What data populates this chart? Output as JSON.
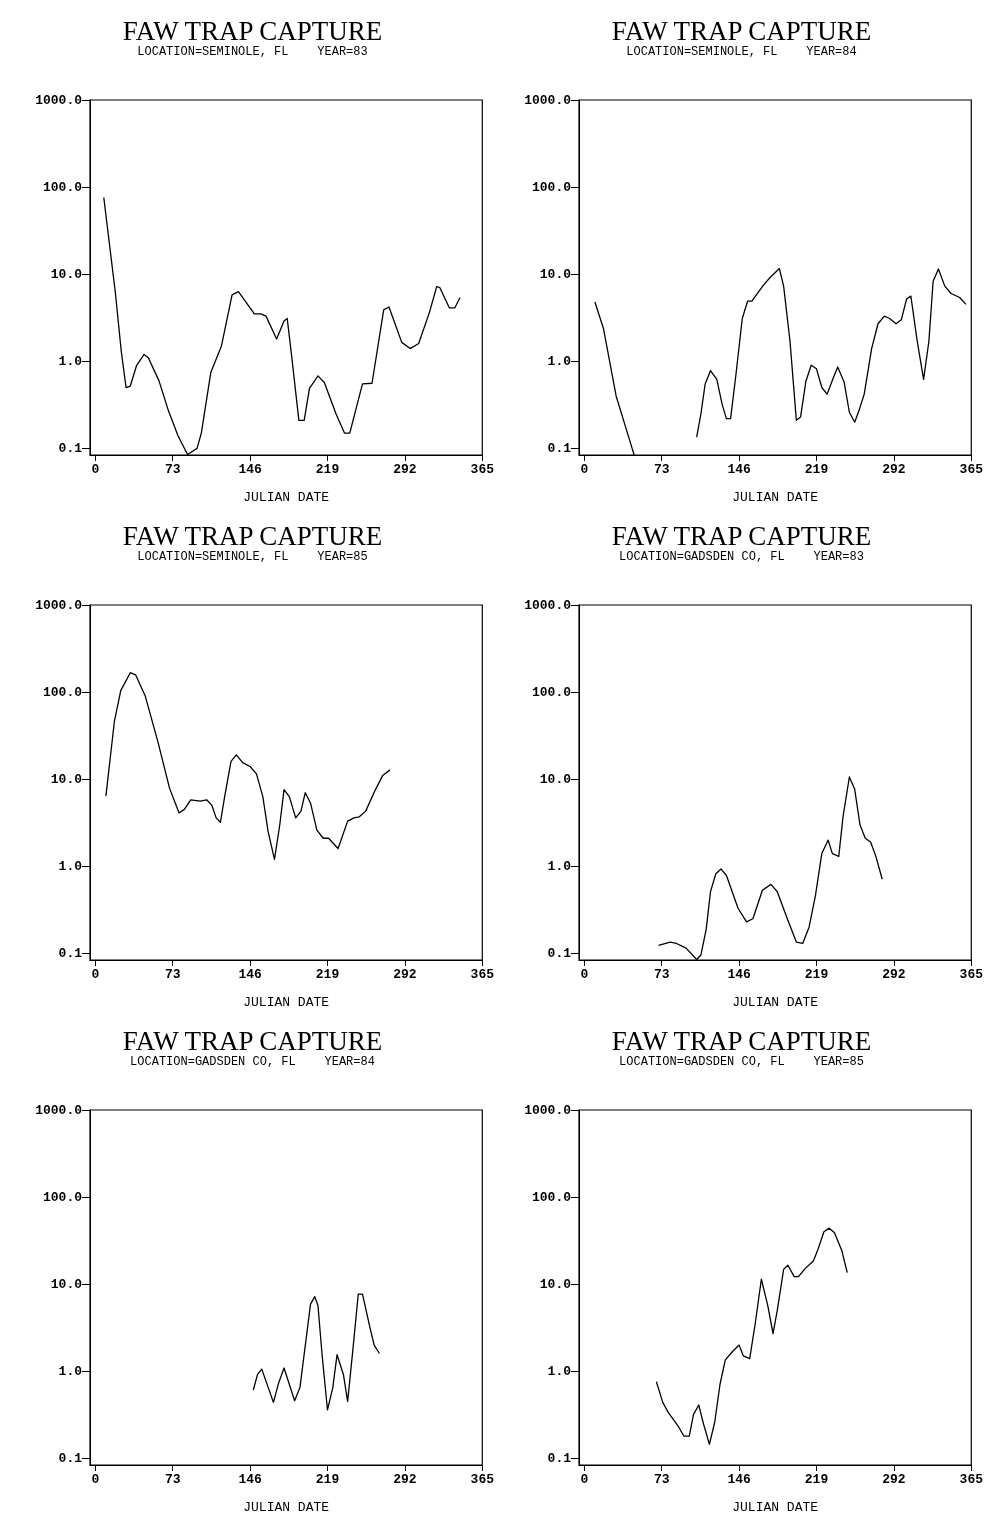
{
  "chart_data": [
    {
      "type": "line",
      "title": "FAW TRAP CAPTURE",
      "subtitle": "LOCATION=SEMINOLE, FL    YEAR=83",
      "xlabel": "JULIAN DATE",
      "log": "y",
      "marker": "none",
      "xlim": [
        -5,
        365
      ],
      "xticks": [
        0,
        73,
        146,
        219,
        292,
        365
      ],
      "ylim": [
        0.084,
        1000
      ],
      "yticks": [
        {
          "value": 0.1,
          "label": "0.1"
        },
        {
          "value": 1,
          "label": "1.0"
        },
        {
          "value": 10,
          "label": "10.0"
        },
        {
          "value": 100,
          "label": "100.0"
        },
        {
          "value": 1000,
          "label": "1000.0"
        }
      ],
      "x": [
        8,
        19,
        24.5,
        29,
        33,
        39,
        46,
        50,
        60,
        69,
        78,
        87,
        96,
        100,
        109,
        119,
        129,
        135,
        150,
        156,
        161,
        171,
        178,
        181,
        185,
        192,
        197,
        202,
        210,
        216,
        227,
        235,
        240,
        252,
        261,
        272,
        277,
        289,
        297,
        305,
        315,
        322,
        325,
        334,
        339,
        344
      ],
      "series": [
        {
          "color": "#000000",
          "values": [
            76,
            6,
            1.3,
            0.5,
            0.52,
            0.9,
            1.2,
            1.1,
            0.6,
            0.27,
            0.14,
            0.085,
            0.1,
            0.15,
            0.75,
            1.5,
            5.8,
            6.3,
            3.5,
            3.5,
            3.3,
            1.8,
            2.9,
            3.1,
            1.2,
            0.21,
            0.21,
            0.49,
            0.68,
            0.57,
            0.25,
            0.15,
            0.15,
            0.55,
            0.56,
            3.9,
            4.2,
            1.65,
            1.4,
            1.6,
            3.6,
            7.2,
            7,
            4.1,
            4.1,
            5.4
          ]
        }
      ]
    },
    {
      "type": "line",
      "title": "FAW TRAP CAPTURE",
      "subtitle": "LOCATION=SEMINOLE, FL    YEAR=84",
      "xlabel": "JULIAN DATE",
      "log": "y",
      "marker": "none",
      "xlim": [
        -5,
        365
      ],
      "xticks": [
        0,
        73,
        146,
        219,
        292,
        365
      ],
      "ylim": [
        0.084,
        1000
      ],
      "yticks": [
        {
          "value": 0.1,
          "label": "0.1"
        },
        {
          "value": 1,
          "label": "1.0"
        },
        {
          "value": 10,
          "label": "10.0"
        },
        {
          "value": 100,
          "label": "100.0"
        },
        {
          "value": 1000,
          "label": "1000.0"
        }
      ],
      "x": [
        10,
        18,
        30,
        40,
        47,
        80,
        106,
        110,
        114,
        119,
        125,
        130,
        134,
        138,
        143,
        149,
        154,
        158,
        169,
        175,
        184,
        188,
        194,
        200,
        204,
        209,
        214,
        219,
        224,
        229,
        235,
        239,
        245,
        250,
        255,
        259,
        264,
        271,
        277,
        283,
        288,
        294,
        299,
        304,
        308,
        314,
        320,
        325,
        329,
        334,
        340,
        346,
        354,
        360
      ],
      "series": [
        {
          "color": "#000000",
          "values": [
            4.8,
            2.4,
            0.4,
            0.16,
            0.084,
            null,
            0.135,
            0.25,
            0.55,
            0.78,
            0.62,
            0.32,
            0.22,
            0.22,
            0.7,
            3.1,
            4.9,
            4.9,
            7.5,
            9.1,
            11.6,
            7.3,
            1.7,
            0.21,
            0.23,
            0.59,
            0.9,
            0.82,
            0.5,
            0.42,
            0.65,
            0.86,
            0.58,
            0.26,
            0.2,
            0.27,
            0.42,
            1.4,
            2.7,
            3.3,
            3.1,
            2.7,
            3,
            5.2,
            5.6,
            1.7,
            0.62,
            1.7,
            8.3,
            11.5,
            7.3,
            6,
            5.4,
            4.5
          ]
        }
      ]
    },
    {
      "type": "line",
      "title": "FAW TRAP CAPTURE",
      "subtitle": "LOCATION=SEMINOLE, FL    YEAR=85",
      "xlabel": "JULIAN DATE",
      "log": "y",
      "marker": "none",
      "xlim": [
        -5,
        365
      ],
      "xticks": [
        0,
        73,
        146,
        219,
        292,
        365
      ],
      "ylim": [
        0.084,
        1000
      ],
      "yticks": [
        {
          "value": 0.1,
          "label": "0.1"
        },
        {
          "value": 1,
          "label": "1.0"
        },
        {
          "value": 10,
          "label": "10.0"
        },
        {
          "value": 100,
          "label": "100.0"
        },
        {
          "value": 1000,
          "label": "1000.0"
        }
      ],
      "x": [
        10,
        18,
        24,
        33,
        38,
        47,
        59,
        70,
        79,
        84,
        90,
        99,
        105,
        110,
        114,
        118,
        122,
        128,
        133,
        139,
        146,
        152,
        158,
        163,
        169,
        174,
        178,
        183,
        189,
        194,
        198,
        203,
        209,
        215,
        220,
        229,
        238,
        244,
        249,
        255,
        264,
        271,
        278
      ],
      "series": [
        {
          "color": "#000000",
          "values": [
            6.4,
            46,
            104,
            167,
            158,
            91,
            27,
            7.9,
            4.1,
            4.5,
            5.8,
            5.6,
            5.8,
            5,
            3.6,
            3.2,
            6.3,
            16,
            19,
            15.5,
            14,
            11.5,
            6.3,
            2.5,
            1.2,
            3,
            7.6,
            6.3,
            3.6,
            4.3,
            7,
            5.3,
            2.6,
            2.1,
            2.1,
            1.6,
            3.3,
            3.6,
            3.7,
            4.3,
            7.5,
            11,
            12.8
          ]
        }
      ]
    },
    {
      "type": "line",
      "title": "FAW TRAP CAPTURE",
      "subtitle": "LOCATION=GADSDEN CO, FL    YEAR=83",
      "xlabel": "JULIAN DATE",
      "log": "y",
      "marker": "none",
      "xlim": [
        -5,
        365
      ],
      "xticks": [
        0,
        73,
        146,
        219,
        292,
        365
      ],
      "ylim": [
        0.084,
        1000
      ],
      "yticks": [
        {
          "value": 0.1,
          "label": "0.1"
        },
        {
          "value": 1,
          "label": "1.0"
        },
        {
          "value": 10,
          "label": "10.0"
        },
        {
          "value": 100,
          "label": "100.0"
        },
        {
          "value": 1000,
          "label": "1000.0"
        }
      ],
      "x": [
        70,
        81,
        87,
        96,
        106,
        110,
        115,
        119,
        124,
        129,
        134,
        145,
        153,
        159,
        168,
        176,
        182,
        192,
        200,
        206,
        212,
        218,
        224,
        230,
        234,
        240,
        244,
        250,
        255,
        260,
        265,
        270,
        275,
        281
      ],
      "series": [
        {
          "color": "#000000",
          "values": [
            0.124,
            0.135,
            0.13,
            0.115,
            0.085,
            0.096,
            0.19,
            0.51,
            0.82,
            0.93,
            0.79,
            0.33,
            0.23,
            0.25,
            0.53,
            0.62,
            0.51,
            0.24,
            0.135,
            0.13,
            0.2,
            0.46,
            1.4,
            2,
            1.4,
            1.3,
            3.7,
            10.6,
            7.7,
            3,
            2.1,
            1.9,
            1.3,
            0.71
          ]
        }
      ]
    },
    {
      "type": "line",
      "title": "FAW TRAP CAPTURE",
      "subtitle": "LOCATION=GADSDEN CO, FL    YEAR=84",
      "xlabel": "JULIAN DATE",
      "log": "y",
      "marker": "none",
      "xlim": [
        -5,
        365
      ],
      "xticks": [
        0,
        73,
        146,
        219,
        292,
        365
      ],
      "ylim": [
        0.084,
        1000
      ],
      "yticks": [
        {
          "value": 0.1,
          "label": "0.1"
        },
        {
          "value": 1,
          "label": "1.0"
        },
        {
          "value": 10,
          "label": "10.0"
        },
        {
          "value": 100,
          "label": "100.0"
        },
        {
          "value": 1000,
          "label": "1000.0"
        }
      ],
      "x": [
        149,
        153,
        157,
        168,
        173,
        178,
        188,
        193,
        203,
        207,
        210,
        214,
        219,
        224,
        228,
        234,
        238,
        243,
        248,
        252,
        259,
        263,
        268
      ],
      "series": [
        {
          "color": "#000000",
          "values": [
            0.61,
            0.92,
            1.06,
            0.44,
            0.74,
            1.09,
            0.46,
            0.65,
            5.9,
            7.2,
            5.7,
            1.5,
            0.36,
            0.65,
            1.55,
            0.92,
            0.45,
            1.8,
            7.7,
            7.7,
            3.2,
            2,
            1.6
          ]
        }
      ]
    },
    {
      "type": "line",
      "title": "FAW TRAP CAPTURE",
      "subtitle": "LOCATION=GADSDEN CO, FL    YEAR=85",
      "xlabel": "JULIAN DATE",
      "log": "y",
      "marker": "none",
      "xlim": [
        -5,
        365
      ],
      "xticks": [
        0,
        73,
        146,
        219,
        292,
        365
      ],
      "ylim": [
        0.084,
        1000
      ],
      "yticks": [
        {
          "value": 0.1,
          "label": "0.1"
        },
        {
          "value": 1,
          "label": "1.0"
        },
        {
          "value": 10,
          "label": "10.0"
        },
        {
          "value": 100,
          "label": "100.0"
        },
        {
          "value": 1000,
          "label": "1000.0"
        }
      ],
      "x": [
        68,
        74,
        79,
        88,
        94,
        99,
        103,
        108,
        112,
        118,
        123,
        128,
        133,
        140,
        146,
        150,
        156,
        161,
        167,
        173,
        178,
        182,
        188,
        192,
        198,
        202,
        208,
        216,
        220,
        226,
        231,
        236,
        243,
        248
      ],
      "series": [
        {
          "color": "#000000",
          "values": [
            0.76,
            0.44,
            0.34,
            0.24,
            0.18,
            0.18,
            0.32,
            0.41,
            0.26,
            0.145,
            0.26,
            0.71,
            1.35,
            1.7,
            2,
            1.5,
            1.4,
            3.4,
            11.4,
            5.7,
            2.7,
            5,
            14.8,
            16.5,
            12.2,
            12.2,
            15,
            18.5,
            24.3,
            40,
            44,
            39,
            24,
            13.6
          ]
        }
      ]
    }
  ]
}
